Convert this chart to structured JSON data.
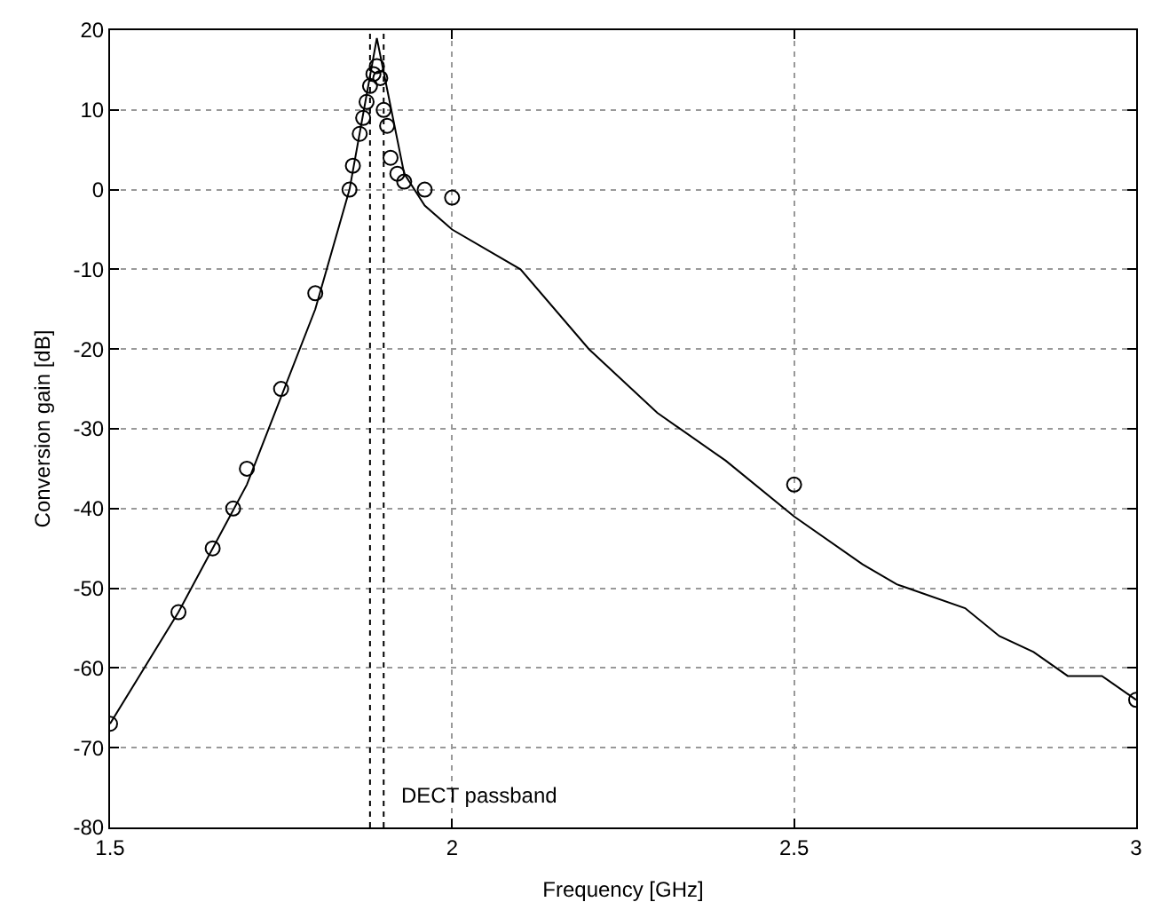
{
  "chart_data": {
    "type": "line",
    "xlabel": "Frequency [GHz]",
    "ylabel": "Conversion gain [dB]",
    "xlim": [
      1.5,
      3
    ],
    "xticks": [
      1.5,
      2,
      2.5,
      3
    ],
    "ylim": [
      -80,
      20
    ],
    "yticks": [
      -80,
      -70,
      -60,
      -50,
      -40,
      -30,
      -20,
      -10,
      0,
      10,
      20
    ],
    "grid": true,
    "line_style": "solid",
    "series": [
      {
        "type": "line",
        "color": "#000000",
        "marker": "none",
        "x": [
          1.5,
          1.6,
          1.7,
          1.8,
          1.85,
          1.89,
          1.93,
          1.96,
          2.0,
          2.1,
          2.2,
          2.3,
          2.4,
          2.5,
          2.6,
          2.65,
          2.75,
          2.8,
          2.85,
          2.9,
          2.95,
          3.0
        ],
        "values": [
          -67,
          -53,
          -37,
          -15,
          0,
          19,
          2,
          -2,
          -5,
          -10,
          -20,
          -28,
          -34,
          -41,
          -47,
          -49.5,
          -52.5,
          -56,
          -58,
          -61,
          -61,
          -64
        ]
      },
      {
        "type": "scatter",
        "color": "#000000",
        "marker": "circle",
        "x": [
          1.5,
          1.6,
          1.65,
          1.68,
          1.7,
          1.75,
          1.8,
          1.85,
          1.855,
          1.865,
          1.87,
          1.875,
          1.88,
          1.885,
          1.89,
          1.895,
          1.9,
          1.905,
          1.91,
          1.92,
          1.93,
          1.96,
          2.0,
          2.5,
          3.0
        ],
        "values": [
          -67,
          -53,
          -45,
          -40,
          -35,
          -25,
          -13,
          0,
          3,
          7,
          9,
          11,
          13,
          14.5,
          15.5,
          14,
          10,
          8,
          4,
          2,
          1,
          0,
          -1,
          -37,
          -64
        ]
      }
    ],
    "ref_lines": [
      {
        "axis": "x",
        "value": 1.88,
        "color": "#000000",
        "line_style": "dotted"
      },
      {
        "axis": "x",
        "value": 1.9,
        "label": "DECT passband",
        "color": "#000000",
        "line_style": "dotted"
      }
    ]
  }
}
